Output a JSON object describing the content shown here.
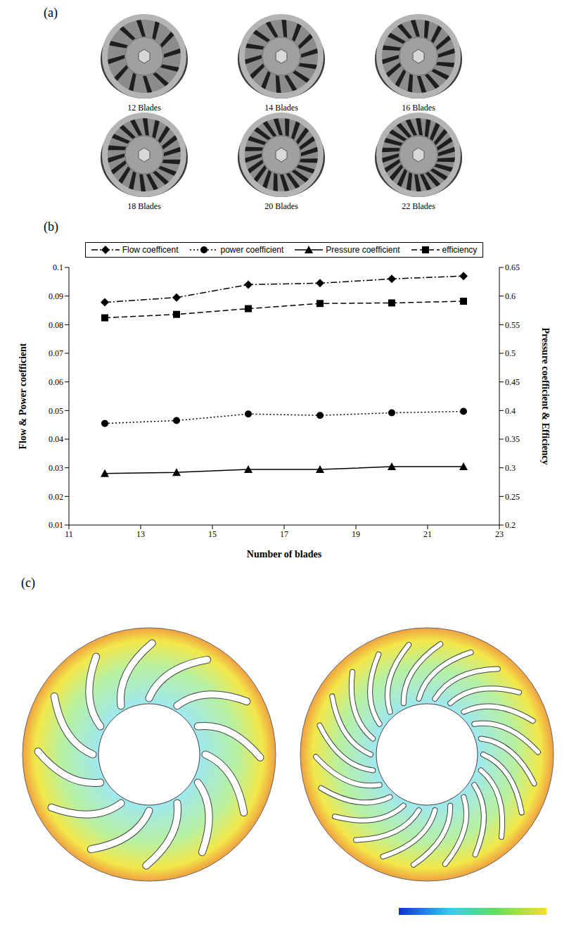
{
  "panel_a": {
    "label": "(a)",
    "items": [
      {
        "label": "12 Blades",
        "blades": 12
      },
      {
        "label": "14 Blades",
        "blades": 14
      },
      {
        "label": "16 Blades",
        "blades": 16
      },
      {
        "label": "18 Blades",
        "blades": 18
      },
      {
        "label": "20 Blades",
        "blades": 20
      },
      {
        "label": "22 Blades",
        "blades": 22
      }
    ]
  },
  "panel_b": {
    "label": "(b)"
  },
  "panel_c": {
    "label": "(c)",
    "views": [
      {
        "blades": 12
      },
      {
        "blades": 22
      }
    ]
  },
  "chart_data": {
    "type": "line",
    "x": [
      12,
      14,
      16,
      18,
      20,
      22
    ],
    "xlabel": "Number of blades",
    "ylabel": "Flow & Power coefficient",
    "y2label": "Pressure coefficient & Efficiency",
    "xlim": [
      11,
      23
    ],
    "xticks": [
      11,
      13,
      15,
      17,
      19,
      21,
      23
    ],
    "ylim": [
      0.01,
      0.1
    ],
    "yticks": [
      0.01,
      0.02,
      0.03,
      0.04,
      0.05,
      0.06,
      0.07,
      0.08,
      0.09,
      0.1
    ],
    "y2lim": [
      0.2,
      0.65
    ],
    "y2ticks": [
      0.2,
      0.25,
      0.3,
      0.35,
      0.4,
      0.45,
      0.5,
      0.55,
      0.6,
      0.65
    ],
    "legend": "top",
    "series": [
      {
        "name": "Flow coefficent",
        "color": "#000000",
        "marker": "diamond",
        "line_style": "dashdot",
        "values": [
          0.0878,
          0.0895,
          0.094,
          0.0945,
          0.096,
          0.097
        ]
      },
      {
        "name": "power coefficient",
        "color": "#000000",
        "marker": "circle",
        "line_style": "dotted",
        "values": [
          0.0455,
          0.0465,
          0.0488,
          0.0483,
          0.0492,
          0.0497
        ]
      },
      {
        "name": "Pressure coefficient",
        "color": "#000000",
        "marker": "triangle",
        "line_style": "solid",
        "axis": "y2",
        "values": [
          0.29,
          0.292,
          0.297,
          0.297,
          0.302,
          0.302
        ]
      },
      {
        "name": "efficiency",
        "color": "#000000",
        "marker": "square",
        "line_style": "dashed",
        "axis": "y2",
        "values": [
          0.562,
          0.568,
          0.578,
          0.587,
          0.588,
          0.591
        ]
      }
    ]
  }
}
